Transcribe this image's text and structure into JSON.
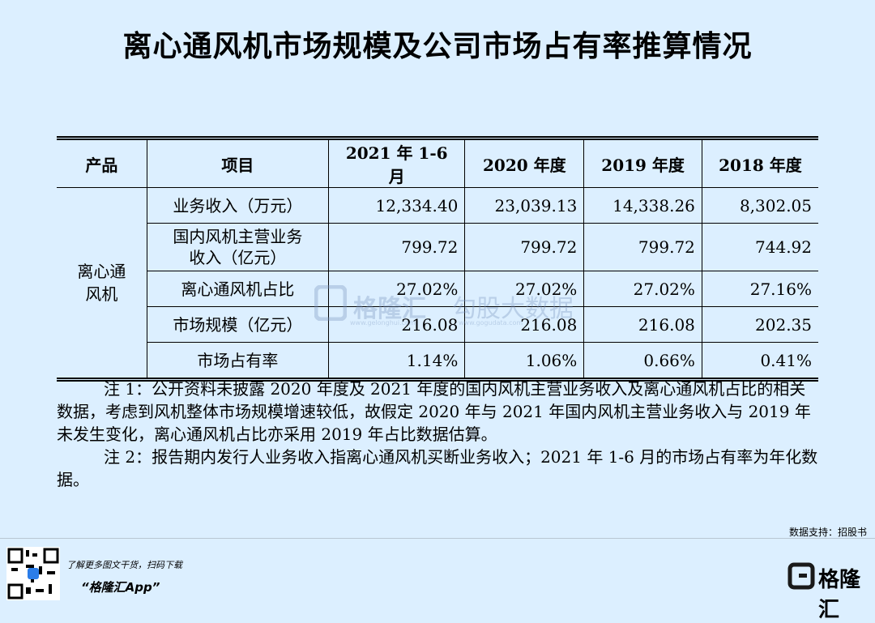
{
  "title": "离心通风机市场规模及公司市场占有率推算情况",
  "table": {
    "headers": [
      "产品",
      "项目",
      "2021 年 1-6 月",
      "2020 年度",
      "2019 年度",
      "2018 年度"
    ],
    "product": "离心通风机",
    "rows": [
      [
        "业务收入（万元）",
        "12,334.40",
        "23,039.13",
        "14,338.26",
        "8,302.05"
      ],
      [
        "国内风机主营业务收入（亿元）",
        "799.72",
        "799.72",
        "799.72",
        "744.92"
      ],
      [
        "离心通风机占比",
        "27.02%",
        "27.02%",
        "27.02%",
        "27.16%"
      ],
      [
        "市场规模（亿元）",
        "216.08",
        "216.08",
        "216.08",
        "202.35"
      ],
      [
        "市场占有率",
        "1.14%",
        "1.06%",
        "0.66%",
        "0.41%"
      ]
    ]
  },
  "notes": [
    "注 1：公开资料未披露 2020 年度及 2021 年度的国内风机主营业务收入及离心通风机占比的相关数据，考虑到风机整体市场规模增速较低，故假定 2020 年与 2021 年国内风机主营业务收入与 2019 年未发生变化，离心通风机占比亦采用 2019 年占比数据估算。",
    "注 2：报告期内发行人业务收入指离心通风机买断业务收入；2021 年 1-6 月的市场占有率为年化数据。"
  ],
  "watermark": {
    "brand": "格隆汇",
    "brand_url": "www.gelonghui.com",
    "partner": "勾股大数据",
    "partner_url": "www.gogudata.com"
  },
  "source": "数据支持：招股书",
  "footer": {
    "cta": "了解更多图文干货，扫码下载",
    "app": "“格隆汇App”",
    "logo": "格隆汇"
  }
}
